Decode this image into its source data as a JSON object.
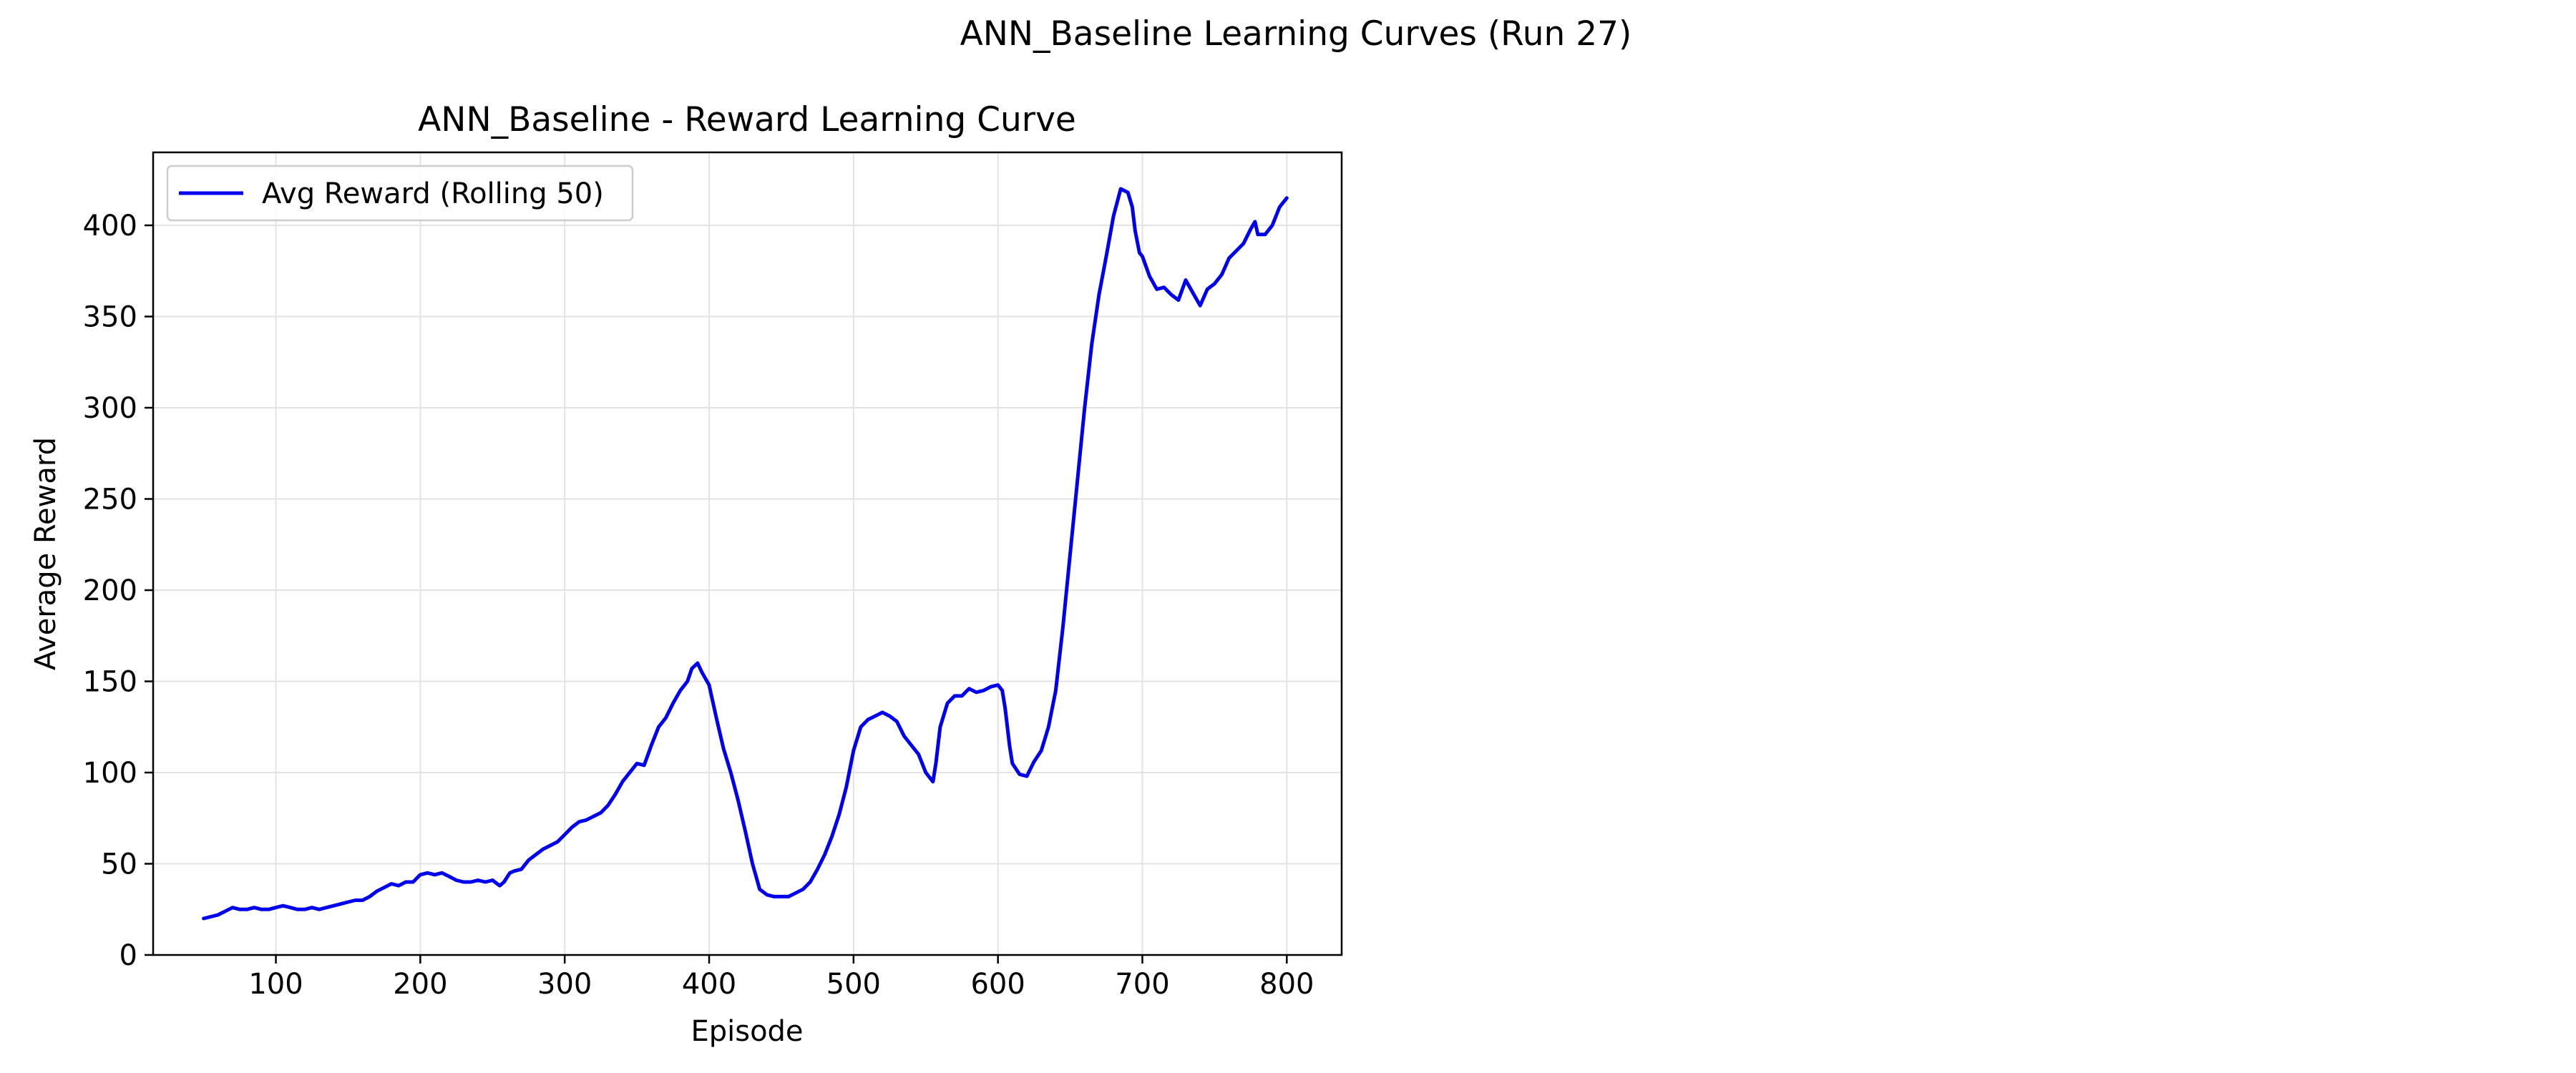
{
  "figure": {
    "suptitle": "ANN_Baseline Learning Curves (Run 27)"
  },
  "chart_data": {
    "type": "line",
    "title": "ANN_Baseline - Reward Learning Curve",
    "xlabel": "Episode",
    "ylabel": "Average Reward",
    "xlim": [
      15,
      838
    ],
    "ylim": [
      0,
      440
    ],
    "xticks": [
      100,
      200,
      300,
      400,
      500,
      600,
      700,
      800
    ],
    "yticks": [
      0,
      50,
      100,
      150,
      200,
      250,
      300,
      350,
      400
    ],
    "grid": true,
    "legend_position": "upper-left",
    "series": [
      {
        "name": "Avg Reward (Rolling 50)",
        "color": "#0000ee",
        "x": [
          50,
          55,
          60,
          65,
          70,
          75,
          80,
          85,
          90,
          95,
          100,
          105,
          110,
          115,
          120,
          125,
          130,
          135,
          140,
          145,
          150,
          155,
          160,
          165,
          170,
          175,
          180,
          185,
          190,
          195,
          200,
          205,
          210,
          215,
          220,
          225,
          230,
          235,
          240,
          245,
          250,
          255,
          258,
          262,
          265,
          270,
          275,
          280,
          285,
          290,
          295,
          300,
          305,
          310,
          315,
          320,
          325,
          330,
          335,
          340,
          345,
          350,
          355,
          360,
          365,
          370,
          375,
          380,
          385,
          388,
          392,
          395,
          400,
          405,
          410,
          415,
          420,
          425,
          430,
          435,
          440,
          445,
          450,
          455,
          460,
          465,
          470,
          475,
          480,
          485,
          490,
          495,
          500,
          505,
          510,
          515,
          520,
          525,
          530,
          535,
          540,
          545,
          550,
          555,
          557,
          560,
          565,
          570,
          575,
          580,
          585,
          590,
          595,
          600,
          603,
          605,
          608,
          610,
          615,
          620,
          625,
          630,
          635,
          640,
          645,
          650,
          655,
          660,
          665,
          670,
          675,
          680,
          685,
          690,
          693,
          695,
          698,
          700,
          705,
          710,
          715,
          720,
          725,
          730,
          735,
          740,
          745,
          750,
          755,
          760,
          765,
          770,
          775,
          778,
          780,
          785,
          790,
          795,
          800
        ],
        "values": [
          20,
          21,
          22,
          24,
          26,
          25,
          25,
          26,
          25,
          25,
          26,
          27,
          26,
          25,
          25,
          26,
          25,
          26,
          27,
          28,
          29,
          30,
          30,
          32,
          35,
          37,
          39,
          38,
          40,
          40,
          44,
          45,
          44,
          45,
          43,
          41,
          40,
          40,
          41,
          40,
          41,
          38,
          40,
          45,
          46,
          47,
          52,
          55,
          58,
          60,
          62,
          66,
          70,
          73,
          74,
          76,
          78,
          82,
          88,
          95,
          100,
          105,
          104,
          115,
          125,
          130,
          138,
          145,
          150,
          157,
          160,
          155,
          148,
          130,
          113,
          100,
          85,
          68,
          50,
          36,
          33,
          32,
          32,
          32,
          34,
          36,
          40,
          47,
          55,
          65,
          77,
          92,
          112,
          125,
          129,
          131,
          133,
          131,
          128,
          120,
          115,
          110,
          100,
          95,
          105,
          125,
          138,
          142,
          142,
          146,
          144,
          145,
          147,
          148,
          145,
          135,
          115,
          105,
          99,
          98,
          106,
          112,
          125,
          145,
          180,
          220,
          260,
          300,
          335,
          362,
          383,
          405,
          420,
          418,
          410,
          397,
          385,
          383,
          372,
          365,
          366,
          362,
          359,
          370,
          363,
          356,
          365,
          368,
          373,
          382,
          386,
          390,
          398,
          402,
          395,
          395,
          400,
          410,
          415
        ]
      }
    ]
  }
}
